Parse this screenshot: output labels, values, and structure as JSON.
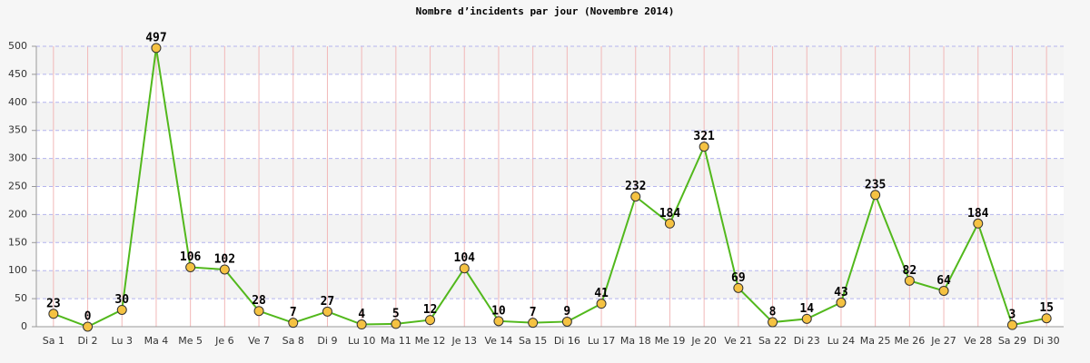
{
  "chart_data": {
    "type": "line",
    "title": "Nombre d’incidents par jour (Novembre 2014)",
    "categories": [
      "Sa 1",
      "Di 2",
      "Lu 3",
      "Ma 4",
      "Me 5",
      "Je 6",
      "Ve 7",
      "Sa 8",
      "Di 9",
      "Lu 10",
      "Ma 11",
      "Me 12",
      "Je 13",
      "Ve 14",
      "Sa 15",
      "Di 16",
      "Lu 17",
      "Ma 18",
      "Me 19",
      "Je 20",
      "Ve 21",
      "Sa 22",
      "Di 23",
      "Lu 24",
      "Ma 25",
      "Me 26",
      "Je 27",
      "Ve 28",
      "Sa 29",
      "Di 30"
    ],
    "series": [
      {
        "name": "Incidents",
        "color": "#52b81c",
        "marker_color": "#f5c242",
        "values": [
          23,
          0,
          30,
          497,
          106,
          102,
          28,
          7,
          27,
          4,
          5,
          12,
          104,
          10,
          7,
          9,
          41,
          232,
          184,
          321,
          69,
          8,
          14,
          43,
          235,
          82,
          64,
          184,
          3,
          15
        ]
      }
    ],
    "ylim": [
      0,
      500
    ],
    "yticks": [
      0,
      50,
      100,
      150,
      200,
      250,
      300,
      350,
      400,
      450,
      500
    ],
    "grid": true
  }
}
